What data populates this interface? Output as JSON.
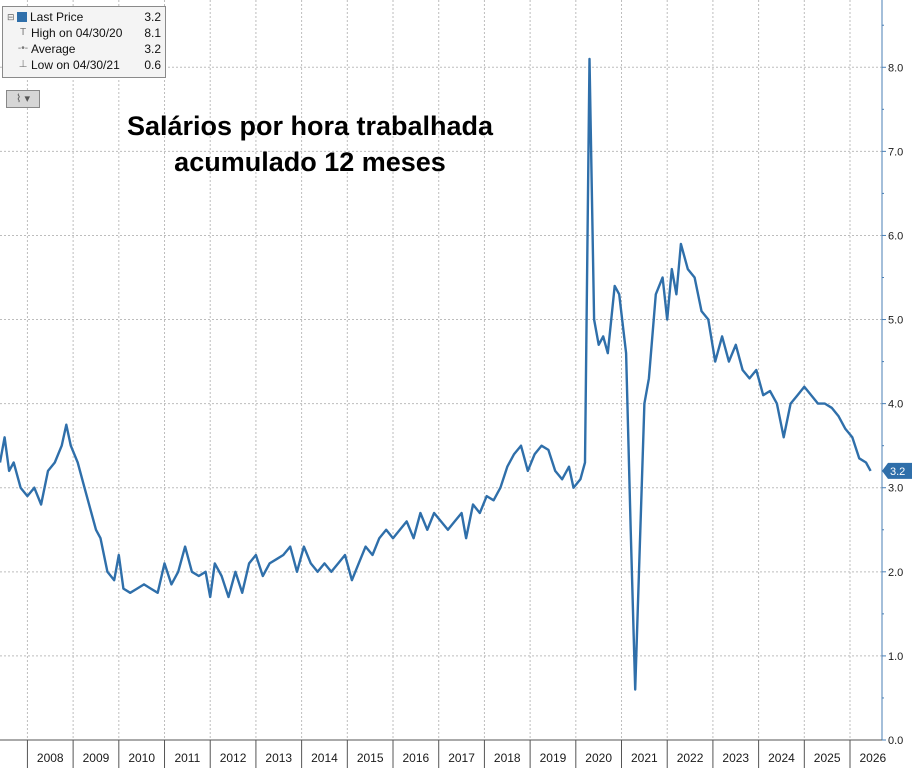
{
  "legend": {
    "rows": [
      {
        "label": "Last Price",
        "value": "3.2"
      },
      {
        "label": "High on 04/30/20",
        "value": "8.1"
      },
      {
        "label": "Average",
        "value": "3.2"
      },
      {
        "label": "Low on 04/30/21",
        "value": "0.6"
      }
    ]
  },
  "colors": {
    "line": "#2f6faa",
    "grid": "#bdbdbd",
    "badge": "#2f6faa"
  },
  "chart_data": {
    "type": "line",
    "title": "Salários por hora trabalhada\nacumulado 12 meses",
    "xlabel": "",
    "ylabel": "",
    "ylim": [
      0,
      8.8
    ],
    "xlim": [
      2007.4,
      2026.7
    ],
    "y_ticks": [
      0.0,
      1.0,
      2.0,
      3.0,
      4.0,
      5.0,
      6.0,
      7.0,
      8.0
    ],
    "x_tick_labels": [
      "2008",
      "2009",
      "2010",
      "2011",
      "2012",
      "2013",
      "2014",
      "2015",
      "2016",
      "2017",
      "2018",
      "2019",
      "2020",
      "2021",
      "2022",
      "2023",
      "2024",
      "2025",
      "2026"
    ],
    "last_value_label": "3.2",
    "grid": true,
    "series": [
      {
        "values": [
          [
            2007.4,
            3.3
          ],
          [
            2007.5,
            3.6
          ],
          [
            2007.6,
            3.2
          ],
          [
            2007.7,
            3.3
          ],
          [
            2007.85,
            3.0
          ],
          [
            2008.0,
            2.9
          ],
          [
            2008.15,
            3.0
          ],
          [
            2008.3,
            2.8
          ],
          [
            2008.45,
            3.2
          ],
          [
            2008.6,
            3.3
          ],
          [
            2008.75,
            3.5
          ],
          [
            2008.85,
            3.75
          ],
          [
            2008.95,
            3.5
          ],
          [
            2009.1,
            3.3
          ],
          [
            2009.25,
            3.0
          ],
          [
            2009.4,
            2.7
          ],
          [
            2009.5,
            2.5
          ],
          [
            2009.6,
            2.4
          ],
          [
            2009.75,
            2.0
          ],
          [
            2009.9,
            1.9
          ],
          [
            2010.0,
            2.2
          ],
          [
            2010.1,
            1.8
          ],
          [
            2010.25,
            1.75
          ],
          [
            2010.4,
            1.8
          ],
          [
            2010.55,
            1.85
          ],
          [
            2010.7,
            1.8
          ],
          [
            2010.85,
            1.75
          ],
          [
            2011.0,
            2.1
          ],
          [
            2011.15,
            1.85
          ],
          [
            2011.3,
            2.0
          ],
          [
            2011.45,
            2.3
          ],
          [
            2011.6,
            2.0
          ],
          [
            2011.75,
            1.95
          ],
          [
            2011.9,
            2.0
          ],
          [
            2012.0,
            1.7
          ],
          [
            2012.1,
            2.1
          ],
          [
            2012.25,
            1.95
          ],
          [
            2012.4,
            1.7
          ],
          [
            2012.55,
            2.0
          ],
          [
            2012.7,
            1.75
          ],
          [
            2012.85,
            2.1
          ],
          [
            2013.0,
            2.2
          ],
          [
            2013.15,
            1.95
          ],
          [
            2013.3,
            2.1
          ],
          [
            2013.45,
            2.15
          ],
          [
            2013.6,
            2.2
          ],
          [
            2013.75,
            2.3
          ],
          [
            2013.9,
            2.0
          ],
          [
            2014.05,
            2.3
          ],
          [
            2014.2,
            2.1
          ],
          [
            2014.35,
            2.0
          ],
          [
            2014.5,
            2.1
          ],
          [
            2014.65,
            2.0
          ],
          [
            2014.8,
            2.1
          ],
          [
            2014.95,
            2.2
          ],
          [
            2015.1,
            1.9
          ],
          [
            2015.25,
            2.1
          ],
          [
            2015.4,
            2.3
          ],
          [
            2015.55,
            2.2
          ],
          [
            2015.7,
            2.4
          ],
          [
            2015.85,
            2.5
          ],
          [
            2016.0,
            2.4
          ],
          [
            2016.15,
            2.5
          ],
          [
            2016.3,
            2.6
          ],
          [
            2016.45,
            2.4
          ],
          [
            2016.6,
            2.7
          ],
          [
            2016.75,
            2.5
          ],
          [
            2016.9,
            2.7
          ],
          [
            2017.05,
            2.6
          ],
          [
            2017.2,
            2.5
          ],
          [
            2017.35,
            2.6
          ],
          [
            2017.5,
            2.7
          ],
          [
            2017.6,
            2.4
          ],
          [
            2017.75,
            2.8
          ],
          [
            2017.9,
            2.7
          ],
          [
            2018.05,
            2.9
          ],
          [
            2018.2,
            2.85
          ],
          [
            2018.35,
            3.0
          ],
          [
            2018.5,
            3.25
          ],
          [
            2018.65,
            3.4
          ],
          [
            2018.8,
            3.5
          ],
          [
            2018.95,
            3.2
          ],
          [
            2019.1,
            3.4
          ],
          [
            2019.25,
            3.5
          ],
          [
            2019.4,
            3.45
          ],
          [
            2019.55,
            3.2
          ],
          [
            2019.7,
            3.1
          ],
          [
            2019.85,
            3.25
          ],
          [
            2019.95,
            3.0
          ],
          [
            2020.1,
            3.1
          ],
          [
            2020.2,
            3.3
          ],
          [
            2020.3,
            8.1
          ],
          [
            2020.4,
            5.0
          ],
          [
            2020.5,
            4.7
          ],
          [
            2020.6,
            4.8
          ],
          [
            2020.7,
            4.6
          ],
          [
            2020.85,
            5.4
          ],
          [
            2020.95,
            5.3
          ],
          [
            2021.1,
            4.6
          ],
          [
            2021.2,
            2.5
          ],
          [
            2021.3,
            0.6
          ],
          [
            2021.4,
            2.3
          ],
          [
            2021.5,
            4.0
          ],
          [
            2021.6,
            4.3
          ],
          [
            2021.75,
            5.3
          ],
          [
            2021.9,
            5.5
          ],
          [
            2022.0,
            5.0
          ],
          [
            2022.1,
            5.6
          ],
          [
            2022.2,
            5.3
          ],
          [
            2022.3,
            5.9
          ],
          [
            2022.45,
            5.6
          ],
          [
            2022.6,
            5.5
          ],
          [
            2022.75,
            5.1
          ],
          [
            2022.9,
            5.0
          ],
          [
            2023.05,
            4.5
          ],
          [
            2023.2,
            4.8
          ],
          [
            2023.35,
            4.5
          ],
          [
            2023.5,
            4.7
          ],
          [
            2023.65,
            4.4
          ],
          [
            2023.8,
            4.3
          ],
          [
            2023.95,
            4.4
          ],
          [
            2024.1,
            4.1
          ],
          [
            2024.25,
            4.15
          ],
          [
            2024.4,
            4.0
          ],
          [
            2024.55,
            3.6
          ],
          [
            2024.7,
            4.0
          ],
          [
            2024.85,
            4.1
          ],
          [
            2025.0,
            4.2
          ],
          [
            2025.15,
            4.1
          ],
          [
            2025.3,
            4.0
          ],
          [
            2025.45,
            4.0
          ],
          [
            2025.6,
            3.95
          ],
          [
            2025.75,
            3.85
          ],
          [
            2025.9,
            3.7
          ],
          [
            2026.05,
            3.6
          ],
          [
            2026.2,
            3.35
          ],
          [
            2026.35,
            3.3
          ],
          [
            2026.45,
            3.2
          ]
        ]
      }
    ]
  }
}
